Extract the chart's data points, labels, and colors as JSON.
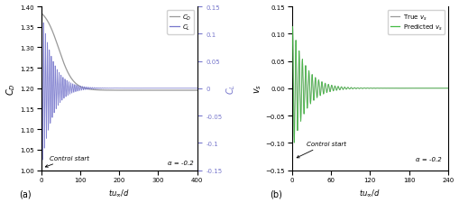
{
  "fig_width": 5.09,
  "fig_height": 2.26,
  "dpi": 100,
  "panel_a": {
    "xlim": [
      0,
      400
    ],
    "ylim_left": [
      1.0,
      1.4
    ],
    "ylim_right": [
      -0.15,
      0.15
    ],
    "xticks": [
      0,
      100,
      200,
      300,
      400
    ],
    "yticks_left": [
      1.0,
      1.05,
      1.1,
      1.15,
      1.2,
      1.25,
      1.3,
      1.35,
      1.4
    ],
    "yticks_right": [
      -0.15,
      -0.1,
      -0.05,
      0.0,
      0.05,
      0.1,
      0.15
    ],
    "cd_color": "#999999",
    "cl_color": "#7777cc",
    "annotation": "Control start",
    "alpha_label": "α = -0.2",
    "label_a": "(a)"
  },
  "panel_b": {
    "xlim": [
      0,
      240
    ],
    "ylim": [
      -0.15,
      0.15
    ],
    "xticks": [
      0,
      60,
      120,
      180,
      240
    ],
    "yticks": [
      -0.15,
      -0.1,
      -0.05,
      0.0,
      0.05,
      0.1,
      0.15
    ],
    "true_color": "#999999",
    "pred_color": "#44bb44",
    "annotation": "Control start",
    "alpha_label": "α = -0.2",
    "label_b": "(b)"
  }
}
